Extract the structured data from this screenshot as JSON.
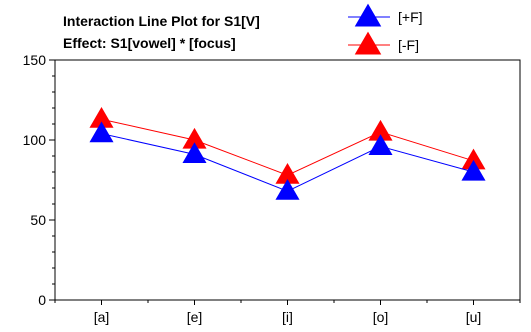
{
  "chart_data": {
    "type": "line",
    "title": "Interaction Line Plot for S1[V]",
    "subtitle": "Effect: S1[vowel] * [focus]",
    "categories": [
      "[a]",
      "[e]",
      "[i]",
      "[o]",
      "[u]"
    ],
    "series": [
      {
        "name": "[+F]",
        "values": [
          104,
          91,
          68,
          96,
          80
        ],
        "color": "#0000ff"
      },
      {
        "name": "[-F]",
        "values": [
          113,
          100,
          78,
          105,
          87
        ],
        "color": "#ff0000"
      }
    ],
    "ylim": [
      0,
      150
    ],
    "yticks": [
      0,
      50,
      100,
      150
    ],
    "grid": false,
    "legend_position": "top-right",
    "marker": "triangle"
  }
}
